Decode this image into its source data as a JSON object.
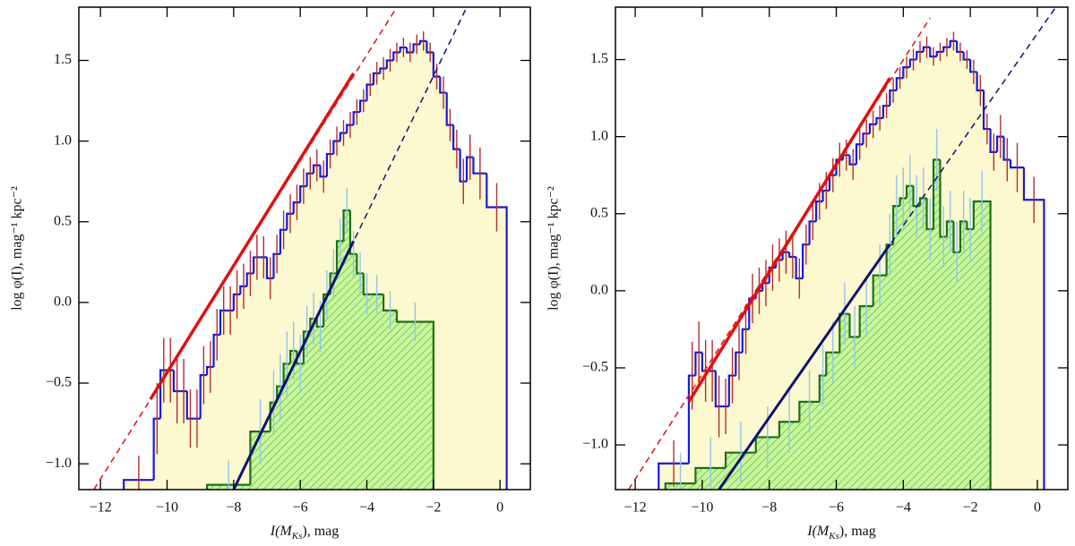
{
  "chart_data": [
    {
      "type": "histogram",
      "xlabel": [
        "I(M",
        "Ks",
        "), mag"
      ],
      "ylabel": "log φ(I), mag⁻¹ kpc⁻²",
      "xlim": [
        -12.65,
        0.91
      ],
      "ylim": [
        -1.16,
        1.83
      ],
      "xticks": [
        {
          "value": -12,
          "label": "−12"
        },
        {
          "value": -10,
          "label": "−10"
        },
        {
          "value": -8,
          "label": "−8"
        },
        {
          "value": -6,
          "label": "−6"
        },
        {
          "value": -4,
          "label": "−4"
        },
        {
          "value": -2,
          "label": "−2"
        },
        0
      ],
      "yticks": [
        {
          "value": -1,
          "label": "−1.0"
        },
        {
          "value": -0.5,
          "label": "−0.5"
        },
        {
          "value": 0,
          "label": "0.0"
        },
        {
          "value": 0.5,
          "label": "0.5"
        },
        {
          "value": 1,
          "label": "1.0"
        },
        {
          "value": 1.5,
          "label": "1.5"
        }
      ],
      "series": [
        {
          "type": "step",
          "color": "#1a1ad6",
          "fill": "#fcf8cf",
          "error_color": "#b03030",
          "bins": [
            -11.3,
            -10.4,
            -10.2,
            -10.0,
            -9.8,
            -9.6,
            -9.4,
            -9.2,
            -9.0,
            -8.8,
            -8.6,
            -8.4,
            -8.2,
            -8.0,
            -7.8,
            -7.6,
            -7.4,
            -7.2,
            -7.0,
            -6.8,
            -6.6,
            -6.4,
            -6.2,
            -6.0,
            -5.8,
            -5.6,
            -5.4,
            -5.2,
            -5.0,
            -4.8,
            -4.6,
            -4.4,
            -4.2,
            -4.0,
            -3.8,
            -3.6,
            -3.4,
            -3.2,
            -3.0,
            -2.8,
            -2.6,
            -2.4,
            -2.2,
            -2.0,
            -1.8,
            -1.6,
            -1.4,
            -1.2,
            -1.0,
            -0.8,
            -0.4,
            0.2
          ],
          "values": [
            -1.1,
            -0.72,
            -0.42,
            -0.42,
            -0.55,
            -0.55,
            -0.72,
            -0.72,
            -0.45,
            -0.4,
            -0.2,
            -0.05,
            -0.05,
            0.05,
            0.1,
            0.18,
            0.28,
            0.28,
            0.15,
            0.3,
            0.45,
            0.55,
            0.62,
            0.72,
            0.8,
            0.85,
            0.78,
            0.92,
            1.0,
            1.05,
            1.1,
            1.18,
            1.25,
            1.35,
            1.42,
            1.45,
            1.5,
            1.55,
            1.58,
            1.55,
            1.6,
            1.62,
            1.55,
            1.4,
            1.3,
            1.1,
            0.95,
            0.75,
            0.9,
            0.8,
            0.59
          ],
          "errors": [
            0.15,
            0.22,
            0.2,
            0.2,
            0.2,
            0.2,
            0.18,
            0.18,
            0.18,
            0.16,
            0.16,
            0.15,
            0.15,
            0.15,
            0.14,
            0.14,
            0.14,
            0.13,
            0.13,
            0.12,
            0.12,
            0.12,
            0.11,
            0.11,
            0.1,
            0.1,
            0.1,
            0.09,
            0.09,
            0.08,
            0.08,
            0.08,
            0.07,
            0.07,
            0.07,
            0.07,
            0.07,
            0.06,
            0.06,
            0.06,
            0.06,
            0.06,
            0.06,
            0.08,
            0.1,
            0.1,
            0.12,
            0.14,
            0.14,
            0.16,
            0.15
          ]
        },
        {
          "type": "step",
          "color": "#1e6e1e",
          "fill": "url(#hatch)",
          "error_color": "#8cc8ea",
          "bins": [
            -8.8,
            -7.5,
            -6.9,
            -6.7,
            -6.5,
            -6.3,
            -6.1,
            -5.9,
            -5.7,
            -5.5,
            -5.3,
            -5.1,
            -4.9,
            -4.7,
            -4.5,
            -4.3,
            -4.1,
            -3.9,
            -3.5,
            -3.1,
            -2.0
          ],
          "values": [
            -1.13,
            -0.8,
            -0.62,
            -0.52,
            -0.38,
            -0.3,
            -0.38,
            -0.18,
            -0.1,
            -0.15,
            0.05,
            0.18,
            0.38,
            0.57,
            0.3,
            0.18,
            0.05,
            0.05,
            -0.05,
            -0.12
          ],
          "errors": [
            0.15,
            0.2,
            0.2,
            0.2,
            0.2,
            0.18,
            0.18,
            0.16,
            0.16,
            0.16,
            0.15,
            0.15,
            0.14,
            0.14,
            0.14,
            0.13,
            0.13,
            0.12,
            0.12,
            0.12
          ]
        },
        {
          "type": "line",
          "color": "#e01010",
          "dash": true,
          "width": 1.5,
          "x": [
            -12.2,
            -3.1
          ],
          "values": [
            -1.16,
            1.83
          ]
        },
        {
          "type": "line",
          "color": "#e01010",
          "dash": false,
          "width": 3.5,
          "x": [
            -10.5,
            -4.4
          ],
          "values": [
            -0.6,
            1.42
          ]
        },
        {
          "type": "line",
          "color": "#101070",
          "dash": true,
          "width": 1.5,
          "x": [
            -8.0,
            -1.0
          ],
          "values": [
            -1.16,
            1.83
          ]
        },
        {
          "type": "line",
          "color": "#101070",
          "dash": false,
          "width": 3,
          "x": [
            -8.0,
            -4.4
          ],
          "values": [
            -1.16,
            0.38
          ]
        }
      ]
    },
    {
      "type": "histogram",
      "xlabel": [
        "I(M",
        "Ks",
        "), mag"
      ],
      "ylabel": "log φ(I), mag⁻¹ kpc⁻²",
      "xlim": [
        -12.59,
        0.91
      ],
      "ylim": [
        -1.29,
        1.84
      ],
      "xticks": [
        {
          "value": -12,
          "label": "−12"
        },
        {
          "value": -10,
          "label": "−10"
        },
        {
          "value": -8,
          "label": "−8"
        },
        {
          "value": -6,
          "label": "−6"
        },
        {
          "value": -4,
          "label": "−4"
        },
        {
          "value": -2,
          "label": "−2"
        },
        0
      ],
      "yticks": [
        {
          "value": -1,
          "label": "−1.0"
        },
        {
          "value": -0.5,
          "label": "−0.5"
        },
        {
          "value": 0,
          "label": "0.0"
        },
        {
          "value": 0.5,
          "label": "0.5"
        },
        {
          "value": 1,
          "label": "1.0"
        },
        {
          "value": 1.5,
          "label": "1.5"
        }
      ],
      "series": [
        {
          "type": "step",
          "color": "#1a1ad6",
          "fill": "#fcf8cf",
          "error_color": "#b03030",
          "bins": [
            -11.3,
            -10.4,
            -10.2,
            -10.0,
            -9.8,
            -9.6,
            -9.4,
            -9.2,
            -9.0,
            -8.8,
            -8.6,
            -8.4,
            -8.2,
            -8.0,
            -7.8,
            -7.6,
            -7.4,
            -7.2,
            -7.0,
            -6.8,
            -6.6,
            -6.4,
            -6.2,
            -6.0,
            -5.8,
            -5.6,
            -5.4,
            -5.2,
            -5.0,
            -4.8,
            -4.6,
            -4.4,
            -4.2,
            -4.0,
            -3.8,
            -3.6,
            -3.4,
            -3.2,
            -3.0,
            -2.8,
            -2.6,
            -2.4,
            -2.2,
            -2.0,
            -1.8,
            -1.6,
            -1.4,
            -1.2,
            -1.0,
            -0.8,
            -0.4,
            0.2
          ],
          "values": [
            -1.12,
            -0.55,
            -0.4,
            -0.52,
            -0.52,
            -0.75,
            -0.75,
            -0.55,
            -0.4,
            -0.25,
            -0.05,
            0.0,
            0.05,
            0.15,
            0.2,
            0.25,
            0.22,
            0.08,
            0.3,
            0.45,
            0.58,
            0.65,
            0.75,
            0.85,
            0.88,
            0.82,
            0.95,
            1.02,
            1.08,
            1.12,
            1.2,
            1.3,
            1.38,
            1.45,
            1.5,
            1.55,
            1.58,
            1.52,
            1.55,
            1.58,
            1.62,
            1.55,
            1.5,
            1.42,
            1.3,
            1.05,
            0.9,
            1.0,
            0.85,
            0.8,
            0.59
          ],
          "errors": [
            0.15,
            0.22,
            0.2,
            0.2,
            0.2,
            0.2,
            0.18,
            0.18,
            0.18,
            0.16,
            0.16,
            0.15,
            0.15,
            0.15,
            0.14,
            0.14,
            0.14,
            0.13,
            0.13,
            0.12,
            0.12,
            0.12,
            0.11,
            0.11,
            0.1,
            0.1,
            0.1,
            0.09,
            0.09,
            0.08,
            0.08,
            0.08,
            0.07,
            0.07,
            0.07,
            0.07,
            0.07,
            0.06,
            0.06,
            0.06,
            0.06,
            0.06,
            0.06,
            0.08,
            0.1,
            0.1,
            0.12,
            0.14,
            0.14,
            0.16,
            0.15
          ]
        },
        {
          "type": "step",
          "color": "#1e6e1e",
          "fill": "url(#hatch)",
          "error_color": "#8cc8ea",
          "bins": [
            -11.1,
            -10.2,
            -9.3,
            -8.4,
            -7.7,
            -7.1,
            -6.5,
            -6.3,
            -5.9,
            -5.6,
            -5.3,
            -4.9,
            -4.5,
            -4.3,
            -4.1,
            -3.9,
            -3.7,
            -3.5,
            -3.3,
            -3.1,
            -2.9,
            -2.7,
            -2.5,
            -2.3,
            -2.1,
            -1.9,
            -1.4
          ],
          "values": [
            -1.25,
            -1.15,
            -1.05,
            -0.95,
            -0.85,
            -0.72,
            -0.55,
            -0.4,
            -0.15,
            -0.3,
            -0.1,
            0.1,
            0.3,
            0.55,
            0.6,
            0.68,
            0.55,
            0.6,
            0.4,
            0.85,
            0.35,
            0.45,
            0.25,
            0.45,
            0.4,
            0.58
          ],
          "errors": [
            0.2,
            0.2,
            0.2,
            0.2,
            0.2,
            0.2,
            0.2,
            0.2,
            0.2,
            0.2,
            0.2,
            0.2,
            0.2,
            0.2,
            0.2,
            0.2,
            0.2,
            0.2,
            0.2,
            0.2,
            0.2,
            0.2,
            0.2,
            0.2,
            0.2,
            0.2
          ]
        },
        {
          "type": "line",
          "color": "#e01010",
          "dash": true,
          "width": 1.5,
          "x": [
            -12.2,
            -3.2
          ],
          "values": [
            -1.29,
            1.77
          ]
        },
        {
          "type": "line",
          "color": "#e01010",
          "dash": false,
          "width": 3.5,
          "x": [
            -10.4,
            -4.4
          ],
          "values": [
            -0.72,
            1.38
          ]
        },
        {
          "type": "line",
          "color": "#101070",
          "dash": true,
          "width": 1.5,
          "x": [
            -9.5,
            0.55
          ],
          "values": [
            -1.29,
            1.84
          ]
        },
        {
          "type": "line",
          "color": "#101070",
          "dash": false,
          "width": 3,
          "x": [
            -9.5,
            -4.4
          ],
          "values": [
            -1.29,
            0.3
          ]
        }
      ]
    }
  ]
}
